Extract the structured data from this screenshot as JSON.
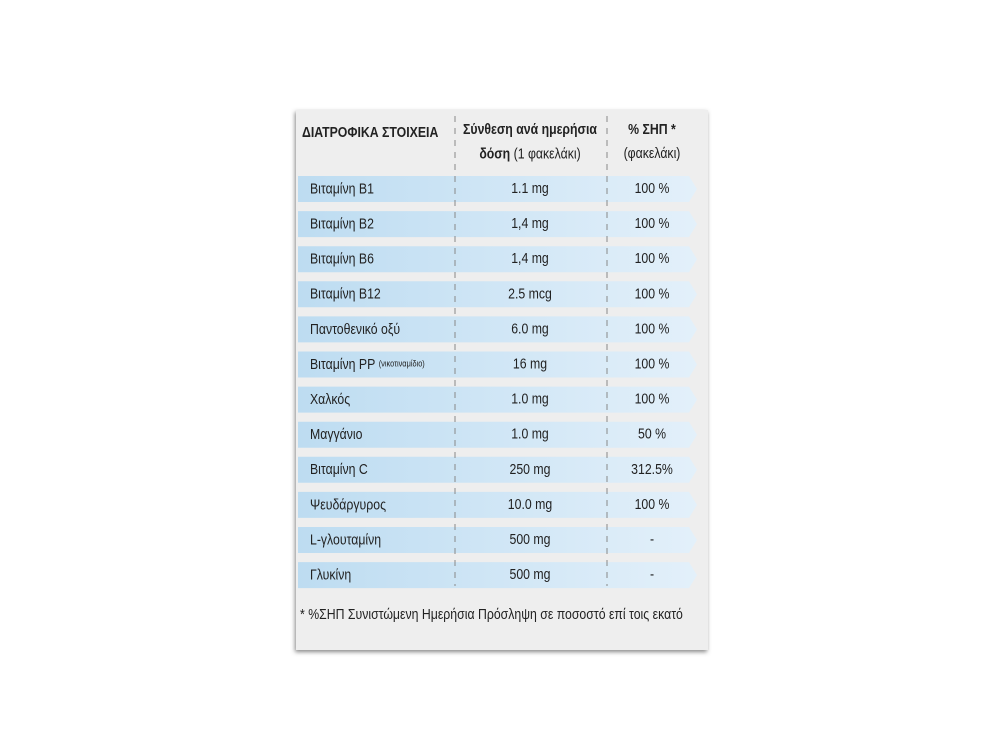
{
  "header": {
    "name": "ΔΙΑΤΡΟΦΙΚΑ ΣΤΟΙΧΕΙΑ",
    "dose_line1": "Σύνθεση ανά ημερήσια",
    "dose_line2_bold": "δόση",
    "dose_line2": "(1 φακελάκι)",
    "rda_line1": "% ΣΗΠ *",
    "rda_line2": "(φακελάκι)"
  },
  "rows": [
    {
      "name": "Βιταμίνη Β1",
      "dose": "1.1 mg",
      "rda": "100 %"
    },
    {
      "name": "Βιταμίνη Β2",
      "dose": "1,4 mg",
      "rda": "100 %"
    },
    {
      "name": "Βιταμίνη Β6",
      "dose": "1,4 mg",
      "rda": "100 %"
    },
    {
      "name": "Βιταμίνη Β12",
      "dose": "2.5 mcg",
      "rda": "100 %"
    },
    {
      "name": "Παντοθενικό οξύ",
      "dose": "6.0 mg",
      "rda": "100 %"
    },
    {
      "name": "Βιταμίνη PP",
      "name_note": "(νικοτιναμίδιο)",
      "dose": "16 mg",
      "rda": "100 %"
    },
    {
      "name": "Χαλκός",
      "dose": "1.0 mg",
      "rda": "100 %"
    },
    {
      "name": "Μαγγάνιο",
      "dose": "1.0 mg",
      "rda": "50 %"
    },
    {
      "name": "Βιταμίνη C",
      "dose": "250 mg",
      "rda": "312.5%"
    },
    {
      "name": "Ψευδάργυρος",
      "dose": "10.0 mg",
      "rda": "100 %"
    },
    {
      "name": "L-γλουταμίνη",
      "dose": "500 mg",
      "rda": "-"
    },
    {
      "name": "Γλυκίνη",
      "dose": "500 mg",
      "rda": "-"
    }
  ],
  "footnote": "* %ΣΗΠ Συνιστώμενη Ημερήσια Πρόσληψη σε ποσοστό επί τοις εκατό"
}
